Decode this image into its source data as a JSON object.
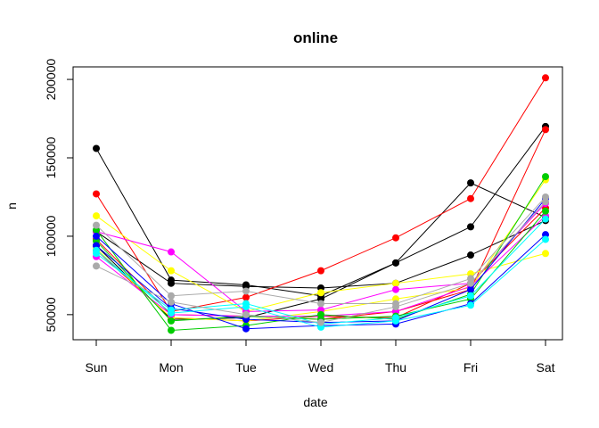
{
  "chart_data": {
    "type": "line",
    "title": "online",
    "xlabel": "date",
    "ylabel": "n",
    "categories": [
      "Sun",
      "Mon",
      "Tue",
      "Wed",
      "Thu",
      "Fri",
      "Sat"
    ],
    "yticks": [
      50000,
      100000,
      150000,
      200000
    ],
    "ylim": [
      34000,
      208000
    ],
    "grid": false,
    "legend": "none",
    "series": [
      {
        "color": "#000000",
        "values": [
          156000,
          72000,
          69000,
          62000,
          83000,
          134000,
          112000
        ]
      },
      {
        "color": "#000000",
        "values": [
          103000,
          70000,
          68000,
          67000,
          70000,
          88000,
          110000
        ]
      },
      {
        "color": "#000000",
        "values": [
          94000,
          47000,
          48000,
          60000,
          83000,
          106000,
          170000
        ]
      },
      {
        "color": "#ff0000",
        "values": [
          127000,
          52000,
          61000,
          78000,
          99000,
          124000,
          201000
        ]
      },
      {
        "color": "#ff0000",
        "values": [
          98000,
          50000,
          49000,
          47000,
          52000,
          66000,
          168000
        ]
      },
      {
        "color": "#ff0000",
        "values": [
          91000,
          48000,
          46000,
          49000,
          48000,
          70000,
          118000
        ]
      },
      {
        "color": "#ffff00",
        "values": [
          113000,
          78000,
          52000,
          64000,
          70000,
          76000,
          89000
        ]
      },
      {
        "color": "#ffff00",
        "values": [
          92000,
          48000,
          46000,
          52000,
          60000,
          67000,
          136000
        ]
      },
      {
        "color": "#ff00ff",
        "values": [
          103000,
          90000,
          52000,
          53000,
          66000,
          70000,
          121000
        ]
      },
      {
        "color": "#ff00ff",
        "values": [
          87000,
          50000,
          49000,
          49000,
          52000,
          68000,
          113000
        ]
      },
      {
        "color": "#00cc00",
        "values": [
          104000,
          40000,
          43000,
          50000,
          47000,
          63000,
          138000
        ]
      },
      {
        "color": "#00cc00",
        "values": [
          97000,
          46000,
          49000,
          47000,
          49000,
          60000,
          116000
        ]
      },
      {
        "color": "#0000ff",
        "values": [
          100000,
          57000,
          41000,
          43000,
          44000,
          57000,
          101000
        ]
      },
      {
        "color": "#0000ff",
        "values": [
          94000,
          54000,
          47000,
          45000,
          46000,
          66000,
          124000
        ]
      },
      {
        "color": "#00ffff",
        "values": [
          91000,
          51000,
          55000,
          42000,
          46000,
          56000,
          98000
        ]
      },
      {
        "color": "#00ffff",
        "values": [
          89000,
          53000,
          57000,
          44000,
          48000,
          62000,
          111000
        ]
      },
      {
        "color": "#aaaaaa",
        "values": [
          107000,
          62000,
          65000,
          57000,
          57000,
          73000,
          125000
        ]
      },
      {
        "color": "#aaaaaa",
        "values": [
          81000,
          58000,
          50000,
          45000,
          55000,
          70000,
          122000
        ]
      }
    ]
  }
}
